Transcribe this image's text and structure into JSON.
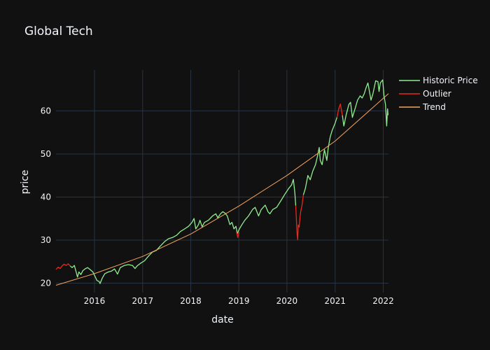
{
  "chart_data": {
    "type": "line",
    "title": "Global Tech",
    "xlabel": "date",
    "ylabel": "price",
    "x_ticks": [
      "2016",
      "2017",
      "2018",
      "2019",
      "2020",
      "2021",
      "2022"
    ],
    "y_ticks": [
      20,
      30,
      40,
      50,
      60
    ],
    "xlim": [
      "2015-03-15",
      "2022-02-10"
    ],
    "ylim": [
      17.8,
      69.5
    ],
    "grid": true,
    "legend_position": "top-right",
    "colors": {
      "background": "#111111",
      "grid": "#283442",
      "text": "#f2f5fa",
      "historic": "#90ee90",
      "outlier": "#e8291c",
      "trend": "#f4a460"
    },
    "series": [
      {
        "name": "Historic Price",
        "color": "#90ee90",
        "points": [
          [
            "2015-07-01",
            24.0
          ],
          [
            "2015-07-15",
            23.6
          ],
          [
            "2015-08-01",
            24.1
          ],
          [
            "2015-08-15",
            22.6
          ],
          [
            "2015-08-25",
            21.4
          ],
          [
            "2015-09-05",
            22.6
          ],
          [
            "2015-09-20",
            22.0
          ],
          [
            "2015-10-05",
            22.9
          ],
          [
            "2015-10-25",
            23.4
          ],
          [
            "2015-11-10",
            23.6
          ],
          [
            "2015-12-01",
            23.1
          ],
          [
            "2015-12-20",
            22.6
          ],
          [
            "2016-01-05",
            21.6
          ],
          [
            "2016-01-20",
            20.6
          ],
          [
            "2016-02-05",
            20.4
          ],
          [
            "2016-02-12",
            19.9
          ],
          [
            "2016-03-01",
            21.2
          ],
          [
            "2016-03-20",
            22.2
          ],
          [
            "2016-04-15",
            22.6
          ],
          [
            "2016-05-10",
            22.8
          ],
          [
            "2016-06-01",
            23.3
          ],
          [
            "2016-06-24",
            22.1
          ],
          [
            "2016-07-15",
            23.6
          ],
          [
            "2016-08-15",
            24.1
          ],
          [
            "2016-09-15",
            24.3
          ],
          [
            "2016-10-15",
            24.1
          ],
          [
            "2016-11-04",
            23.4
          ],
          [
            "2016-11-20",
            24.0
          ],
          [
            "2016-12-15",
            24.6
          ],
          [
            "2017-01-15",
            25.2
          ],
          [
            "2017-02-15",
            26.3
          ],
          [
            "2017-03-15",
            27.2
          ],
          [
            "2017-04-15",
            27.6
          ],
          [
            "2017-05-15",
            28.6
          ],
          [
            "2017-06-15",
            29.6
          ],
          [
            "2017-07-15",
            30.3
          ],
          [
            "2017-08-15",
            30.6
          ],
          [
            "2017-09-15",
            31.1
          ],
          [
            "2017-10-15",
            32.0
          ],
          [
            "2017-11-15",
            32.6
          ],
          [
            "2017-12-15",
            33.2
          ],
          [
            "2018-01-10",
            34.1
          ],
          [
            "2018-01-26",
            35.0
          ],
          [
            "2018-02-08",
            32.6
          ],
          [
            "2018-03-01",
            33.6
          ],
          [
            "2018-03-12",
            34.6
          ],
          [
            "2018-03-28",
            33.1
          ],
          [
            "2018-04-15",
            34.1
          ],
          [
            "2018-05-15",
            34.6
          ],
          [
            "2018-06-15",
            35.6
          ],
          [
            "2018-07-10",
            36.1
          ],
          [
            "2018-07-25",
            35.2
          ],
          [
            "2018-08-15",
            36.1
          ],
          [
            "2018-09-01",
            36.6
          ],
          [
            "2018-09-20",
            36.2
          ],
          [
            "2018-10-05",
            35.6
          ],
          [
            "2018-10-25",
            33.6
          ],
          [
            "2018-11-10",
            34.1
          ],
          [
            "2018-11-25",
            32.6
          ],
          [
            "2018-12-10",
            33.2
          ],
          [
            "2018-12-20",
            31.5
          ],
          [
            "2019-01-05",
            32.6
          ],
          [
            "2019-01-25",
            33.6
          ],
          [
            "2019-02-15",
            34.6
          ],
          [
            "2019-03-15",
            35.6
          ],
          [
            "2019-04-15",
            37.1
          ],
          [
            "2019-05-05",
            37.6
          ],
          [
            "2019-05-31",
            35.6
          ],
          [
            "2019-06-20",
            37.1
          ],
          [
            "2019-07-20",
            38.1
          ],
          [
            "2019-08-10",
            36.6
          ],
          [
            "2019-08-25",
            36.1
          ],
          [
            "2019-09-15",
            37.1
          ],
          [
            "2019-10-15",
            37.6
          ],
          [
            "2019-11-15",
            39.1
          ],
          [
            "2019-12-15",
            40.6
          ],
          [
            "2020-01-15",
            42.0
          ],
          [
            "2020-02-05",
            42.8
          ],
          [
            "2020-02-19",
            44.1
          ],
          [
            "2020-03-01",
            41.0
          ],
          [
            "2020-03-08",
            38.0
          ]
        ]
      },
      {
        "name": "Historic Price",
        "color": "#90ee90",
        "points": [
          [
            "2020-05-05",
            40.5
          ],
          [
            "2020-05-20",
            42.0
          ],
          [
            "2020-06-08",
            45.0
          ],
          [
            "2020-06-26",
            44.0
          ],
          [
            "2020-07-15",
            46.0
          ],
          [
            "2020-08-05",
            47.5
          ],
          [
            "2020-08-20",
            49.5
          ],
          [
            "2020-09-02",
            51.5
          ],
          [
            "2020-09-10",
            48.5
          ],
          [
            "2020-09-24",
            47.5
          ],
          [
            "2020-10-12",
            51.0
          ],
          [
            "2020-10-30",
            48.5
          ],
          [
            "2020-11-10",
            51.5
          ],
          [
            "2020-11-25",
            54.0
          ],
          [
            "2020-12-10",
            55.5
          ],
          [
            "2020-12-30",
            57.0
          ],
          [
            "2021-01-15",
            58.5
          ]
        ]
      },
      {
        "name": "Historic Price",
        "color": "#90ee90",
        "points": [
          [
            "2021-02-25",
            59.0
          ],
          [
            "2021-03-08",
            56.5
          ],
          [
            "2021-03-25",
            59.0
          ],
          [
            "2021-04-15",
            61.5
          ],
          [
            "2021-04-28",
            62.0
          ],
          [
            "2021-05-12",
            58.5
          ],
          [
            "2021-06-01",
            60.5
          ],
          [
            "2021-06-20",
            62.5
          ],
          [
            "2021-07-10",
            63.5
          ],
          [
            "2021-07-25",
            63.0
          ],
          [
            "2021-08-10",
            64.0
          ],
          [
            "2021-08-25",
            65.5
          ],
          [
            "2021-09-07",
            66.5
          ],
          [
            "2021-09-30",
            62.5
          ],
          [
            "2021-10-15",
            64.0
          ],
          [
            "2021-11-05",
            67.0
          ],
          [
            "2021-11-22",
            66.8
          ],
          [
            "2021-11-30",
            64.5
          ],
          [
            "2021-12-10",
            66.5
          ],
          [
            "2021-12-28",
            67.2
          ],
          [
            "2022-01-07",
            63.5
          ],
          [
            "2022-01-18",
            61.5
          ],
          [
            "2022-01-27",
            56.5
          ],
          [
            "2022-02-03",
            60.5
          ],
          [
            "2022-02-07",
            59.0
          ]
        ]
      },
      {
        "name": "Outlier",
        "color": "#e8291c",
        "points": [
          [
            "2015-03-15",
            23.2
          ],
          [
            "2015-04-01",
            23.7
          ],
          [
            "2015-04-15",
            23.4
          ],
          [
            "2015-05-01",
            24.0
          ],
          [
            "2015-05-15",
            24.4
          ],
          [
            "2015-06-01",
            24.1
          ],
          [
            "2015-06-15",
            24.5
          ],
          [
            "2015-07-01",
            24.0
          ]
        ]
      },
      {
        "name": "Outlier",
        "color": "#e8291c",
        "points": [
          [
            "2018-12-14",
            32.0
          ],
          [
            "2018-12-24",
            30.6
          ],
          [
            "2019-01-03",
            31.8
          ]
        ]
      },
      {
        "name": "Outlier",
        "color": "#e8291c",
        "points": [
          [
            "2020-03-08",
            38.0
          ],
          [
            "2020-03-13",
            34.5
          ],
          [
            "2020-03-18",
            31.5
          ],
          [
            "2020-03-23",
            30.1
          ],
          [
            "2020-03-27",
            33.5
          ],
          [
            "2020-04-03",
            33.0
          ],
          [
            "2020-04-10",
            35.5
          ],
          [
            "2020-04-17",
            37.0
          ],
          [
            "2020-04-24",
            38.0
          ],
          [
            "2020-05-05",
            40.5
          ]
        ]
      },
      {
        "name": "Outlier",
        "color": "#e8291c",
        "points": [
          [
            "2021-01-15",
            58.5
          ],
          [
            "2021-01-28",
            60.5
          ],
          [
            "2021-02-10",
            61.6
          ],
          [
            "2021-02-25",
            59.0
          ]
        ]
      },
      {
        "name": "Trend",
        "color": "#f4a460",
        "points": [
          [
            "2015-03-15",
            19.5
          ],
          [
            "2016-01-01",
            22.2
          ],
          [
            "2017-01-01",
            26.2
          ],
          [
            "2018-01-01",
            31.4
          ],
          [
            "2019-01-01",
            37.9
          ],
          [
            "2020-01-01",
            45.0
          ],
          [
            "2021-01-01",
            53.0
          ],
          [
            "2022-02-10",
            64.0
          ]
        ]
      }
    ],
    "legend": [
      {
        "label": "Historic Price",
        "color": "#90ee90"
      },
      {
        "label": "Outlier",
        "color": "#e8291c"
      },
      {
        "label": "Trend",
        "color": "#f4a460"
      }
    ]
  }
}
